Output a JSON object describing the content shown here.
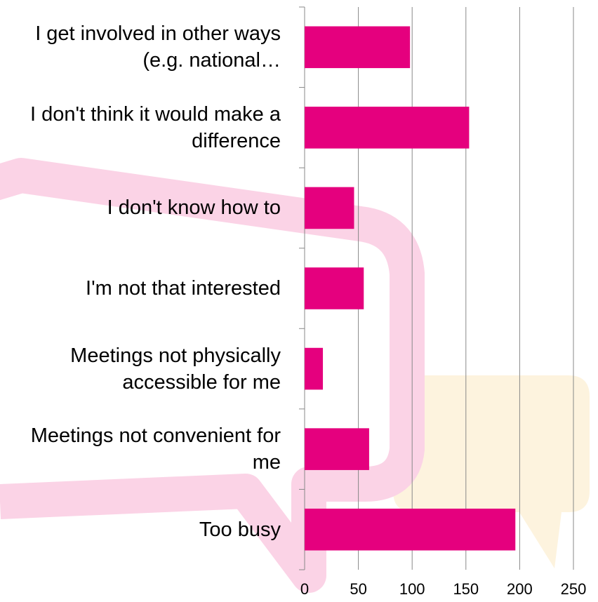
{
  "chart_data": {
    "type": "bar",
    "orientation": "horizontal",
    "categories": [
      "I get involved in other ways (e.g. national…",
      "I don't think it would make a difference",
      "I don't know how to",
      "I'm not that interested",
      "Meetings not physically accessible for me",
      "Meetings not convenient for me",
      "Too busy"
    ],
    "values": [
      98,
      153,
      46,
      55,
      17,
      60,
      196
    ],
    "color": "#e5007e",
    "xlim": [
      0,
      250
    ],
    "xticks": [
      0,
      50,
      100,
      150,
      200,
      250
    ],
    "grid": true
  }
}
